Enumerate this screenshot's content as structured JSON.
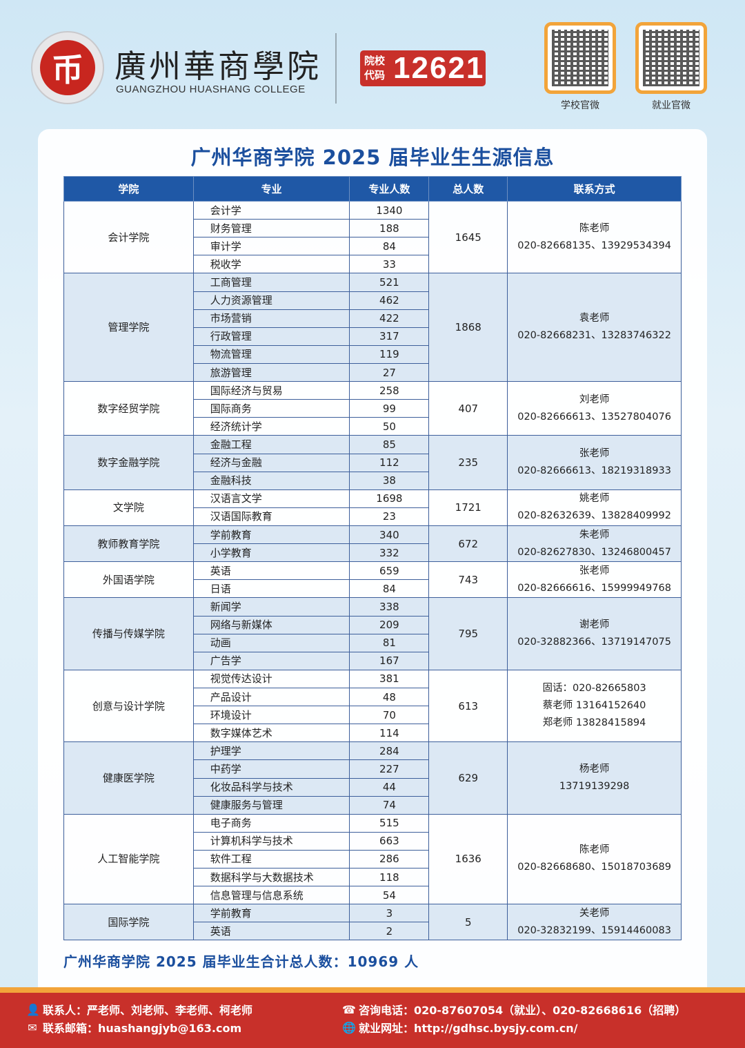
{
  "header": {
    "logo_text": "GUANGZHOU HUASHANG COLLEGE",
    "college_name_cn": "廣州華商學院",
    "college_name_en": "GUANGZHOU HUASHANG COLLEGE",
    "code_label_1": "院校",
    "code_label_2": "代码",
    "code_number": "12621",
    "qr": [
      {
        "label": "学校官微"
      },
      {
        "label": "就业官微"
      }
    ]
  },
  "title": "广州华商学院 2025 届毕业生生源信息",
  "table": {
    "headers": [
      "学院",
      "专业",
      "专业人数",
      "总人数",
      "联系方式"
    ],
    "groups": [
      {
        "college": "会计学院",
        "total": "1645",
        "contact": [
          "陈老师",
          "020-82668135、13929534394"
        ],
        "majors": [
          [
            "会计学",
            "1340"
          ],
          [
            "财务管理",
            "188"
          ],
          [
            "审计学",
            "84"
          ],
          [
            "税收学",
            "33"
          ]
        ]
      },
      {
        "college": "管理学院",
        "total": "1868",
        "contact": [
          "袁老师",
          "020-82668231、13283746322"
        ],
        "majors": [
          [
            "工商管理",
            "521"
          ],
          [
            "人力资源管理",
            "462"
          ],
          [
            "市场营销",
            "422"
          ],
          [
            "行政管理",
            "317"
          ],
          [
            "物流管理",
            "119"
          ],
          [
            "旅游管理",
            "27"
          ]
        ]
      },
      {
        "college": "数字经贸学院",
        "total": "407",
        "contact": [
          "刘老师",
          "020-82666613、13527804076"
        ],
        "majors": [
          [
            "国际经济与贸易",
            "258"
          ],
          [
            "国际商务",
            "99"
          ],
          [
            "经济统计学",
            "50"
          ]
        ]
      },
      {
        "college": "数字金融学院",
        "total": "235",
        "contact": [
          "张老师",
          "020-82666613、18219318933"
        ],
        "majors": [
          [
            "金融工程",
            "85"
          ],
          [
            "经济与金融",
            "112"
          ],
          [
            "金融科技",
            "38"
          ]
        ]
      },
      {
        "college": "文学院",
        "total": "1721",
        "contact": [
          "姚老师",
          "020-82632639、13828409992"
        ],
        "majors": [
          [
            "汉语言文学",
            "1698"
          ],
          [
            "汉语国际教育",
            "23"
          ]
        ]
      },
      {
        "college": "教师教育学院",
        "total": "672",
        "contact": [
          "朱老师",
          "020-82627830、13246800457"
        ],
        "majors": [
          [
            "学前教育",
            "340"
          ],
          [
            "小学教育",
            "332"
          ]
        ]
      },
      {
        "college": "外国语学院",
        "total": "743",
        "contact": [
          "张老师",
          "020-82666616、15999949768"
        ],
        "majors": [
          [
            "英语",
            "659"
          ],
          [
            "日语",
            "84"
          ]
        ]
      },
      {
        "college": "传播与传媒学院",
        "total": "795",
        "contact": [
          "谢老师",
          "020-32882366、13719147075"
        ],
        "majors": [
          [
            "新闻学",
            "338"
          ],
          [
            "网络与新媒体",
            "209"
          ],
          [
            "动画",
            "81"
          ],
          [
            "广告学",
            "167"
          ]
        ]
      },
      {
        "college": "创意与设计学院",
        "total": "613",
        "contact": [
          "固话：020-82665803",
          "蔡老师 13164152640",
          "郑老师 13828415894"
        ],
        "majors": [
          [
            "视觉传达设计",
            "381"
          ],
          [
            "产品设计",
            "48"
          ],
          [
            "环境设计",
            "70"
          ],
          [
            "数字媒体艺术",
            "114"
          ]
        ]
      },
      {
        "college": "健康医学院",
        "total": "629",
        "contact": [
          "杨老师",
          "13719139298"
        ],
        "majors": [
          [
            "护理学",
            "284"
          ],
          [
            "中药学",
            "227"
          ],
          [
            "化妆品科学与技术",
            "44"
          ],
          [
            "健康服务与管理",
            "74"
          ]
        ]
      },
      {
        "college": "人工智能学院",
        "total": "1636",
        "contact": [
          "陈老师",
          "020-82668680、15018703689"
        ],
        "majors": [
          [
            "电子商务",
            "515"
          ],
          [
            "计算机科学与技术",
            "663"
          ],
          [
            "软件工程",
            "286"
          ],
          [
            "数据科学与大数据技术",
            "118"
          ],
          [
            "信息管理与信息系统",
            "54"
          ]
        ]
      },
      {
        "college": "国际学院",
        "total": "5",
        "contact": [
          "关老师",
          "020-32832199、15914460083"
        ],
        "majors": [
          [
            "学前教育",
            "3"
          ],
          [
            "英语",
            "2"
          ]
        ]
      }
    ]
  },
  "total_line": "广州华商学院 2025 届毕业生合计总人数：10969 人",
  "footer": {
    "contacts": "联系人：严老师、刘老师、李老师、柯老师",
    "email": "联系邮箱：huashangjyb@163.com",
    "phone": "咨询电话：020-87607054（就业）、020-82668616（招聘）",
    "website": "就业网址：http://gdhsc.bysjy.com.cn/"
  },
  "colors": {
    "brand_red": "#c8302a",
    "brand_blue": "#1b4f9e",
    "header_blue": "#1f58a6",
    "alt_row": "#dce8f4",
    "accent_orange": "#f2a43a"
  }
}
